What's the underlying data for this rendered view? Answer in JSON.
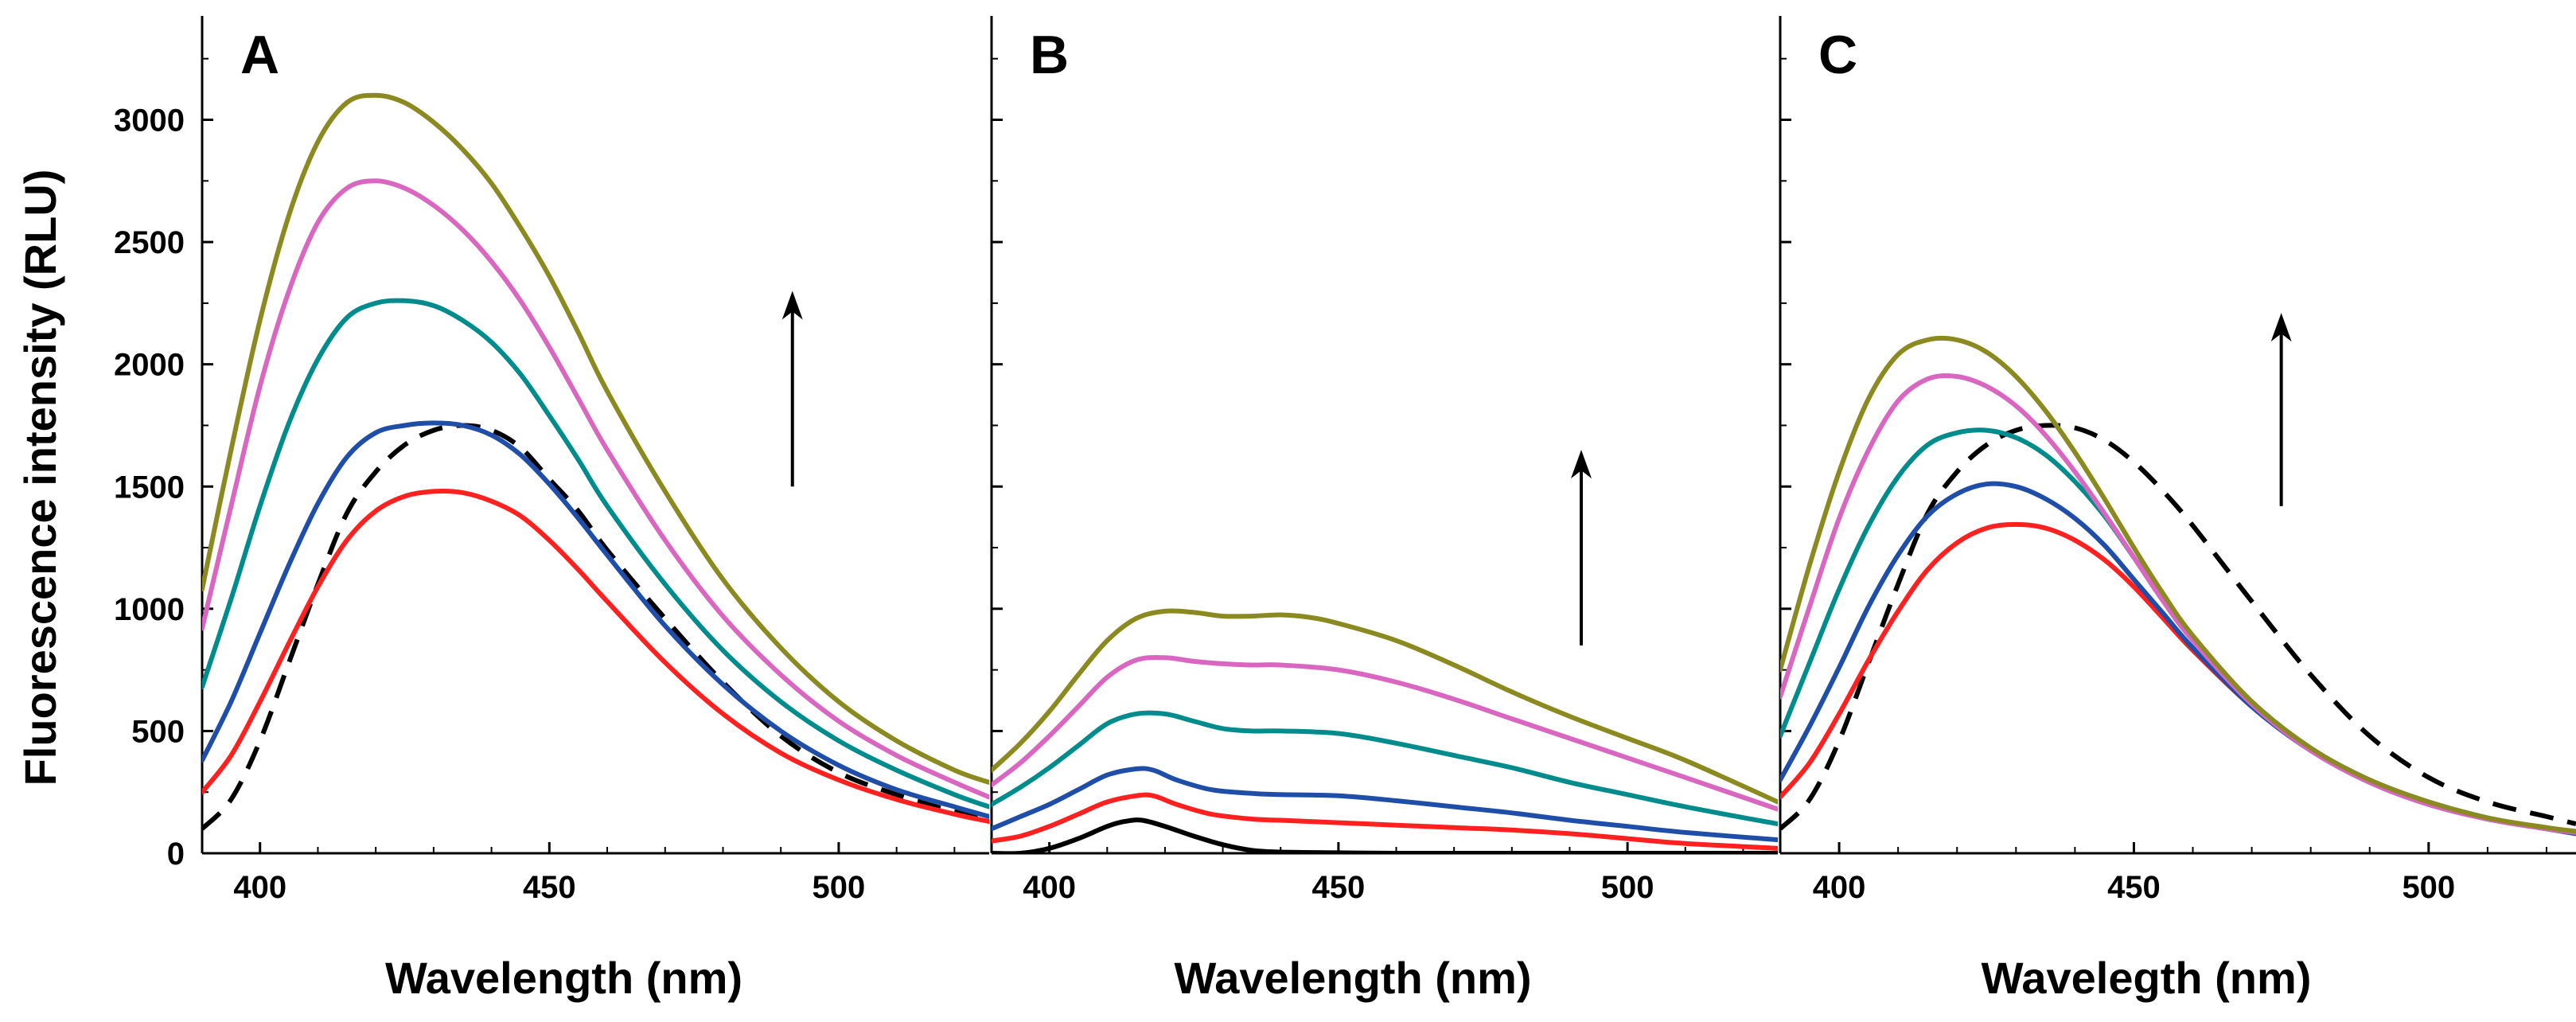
{
  "chart_data": [
    {
      "panel": "A",
      "type": "line",
      "xlabel": "Wavelength (nm)",
      "ylabel": "Fluorescence intensity (RLU)",
      "xlim": [
        390,
        526
      ],
      "ylim": [
        0,
        3350
      ],
      "x_ticks": [
        400,
        450,
        500
      ],
      "y_ticks": [
        0,
        500,
        1000,
        1500,
        2000,
        2500,
        3000
      ],
      "x_tick_labels": [
        "400",
        "450",
        "500"
      ],
      "y_tick_labels": [
        "0",
        "500",
        "1000",
        "1500",
        "2000",
        "2500",
        "3000"
      ],
      "arrow": {
        "x": 492,
        "y_from": 1500,
        "y_to": 2300,
        "direction": "up"
      },
      "series": [
        {
          "name": "dashed",
          "color": "#000000",
          "dashed": true,
          "x": [
            390,
            395,
            400,
            405,
            410,
            415,
            420,
            425,
            430,
            435,
            440,
            445,
            450,
            455,
            460,
            470,
            480,
            490,
            500,
            510,
            520,
            526
          ],
          "y": [
            100,
            220,
            460,
            780,
            1100,
            1390,
            1560,
            1670,
            1730,
            1750,
            1730,
            1660,
            1530,
            1400,
            1240,
            960,
            700,
            480,
            330,
            240,
            170,
            140
          ]
        },
        {
          "name": "red",
          "color": "#ff2020",
          "x": [
            390,
            395,
            400,
            405,
            410,
            415,
            420,
            425,
            430,
            435,
            440,
            445,
            450,
            455,
            460,
            470,
            480,
            490,
            500,
            510,
            520,
            526
          ],
          "y": [
            250,
            400,
            620,
            860,
            1090,
            1280,
            1400,
            1460,
            1480,
            1475,
            1440,
            1380,
            1280,
            1160,
            1030,
            780,
            570,
            410,
            300,
            220,
            160,
            130
          ]
        },
        {
          "name": "blue",
          "color": "#1f4ea8",
          "x": [
            390,
            395,
            400,
            405,
            410,
            415,
            420,
            425,
            430,
            435,
            440,
            445,
            450,
            455,
            460,
            470,
            480,
            490,
            500,
            510,
            520,
            526
          ],
          "y": [
            380,
            620,
            900,
            1180,
            1430,
            1620,
            1720,
            1750,
            1760,
            1750,
            1710,
            1630,
            1510,
            1370,
            1220,
            930,
            690,
            500,
            360,
            260,
            190,
            150
          ]
        },
        {
          "name": "teal",
          "color": "#008c8c",
          "x": [
            390,
            395,
            400,
            405,
            410,
            415,
            420,
            425,
            430,
            435,
            440,
            445,
            450,
            455,
            460,
            470,
            480,
            490,
            500,
            510,
            520,
            526
          ],
          "y": [
            680,
            1040,
            1420,
            1760,
            2020,
            2190,
            2250,
            2260,
            2240,
            2180,
            2090,
            1960,
            1790,
            1610,
            1420,
            1100,
            830,
            620,
            460,
            340,
            240,
            190
          ]
        },
        {
          "name": "pink",
          "color": "#d966c0",
          "x": [
            390,
            395,
            400,
            405,
            410,
            415,
            420,
            425,
            430,
            435,
            440,
            445,
            450,
            455,
            460,
            470,
            480,
            490,
            500,
            510,
            520,
            526
          ],
          "y": [
            920,
            1420,
            1910,
            2300,
            2580,
            2720,
            2750,
            2720,
            2650,
            2550,
            2420,
            2260,
            2070,
            1860,
            1650,
            1280,
            970,
            730,
            540,
            400,
            290,
            230
          ]
        },
        {
          "name": "olive",
          "color": "#8a8a20",
          "x": [
            390,
            395,
            400,
            405,
            410,
            415,
            420,
            425,
            430,
            435,
            440,
            445,
            450,
            455,
            460,
            470,
            480,
            490,
            500,
            510,
            520,
            526
          ],
          "y": [
            1080,
            1650,
            2180,
            2610,
            2910,
            3070,
            3100,
            3070,
            2990,
            2880,
            2740,
            2560,
            2360,
            2130,
            1890,
            1480,
            1120,
            840,
            620,
            460,
            340,
            290
          ]
        }
      ]
    },
    {
      "panel": "B",
      "type": "line",
      "xlabel": "Wavelength (nm)",
      "ylabel": "",
      "xlim": [
        390,
        526
      ],
      "ylim": [
        0,
        3350
      ],
      "x_ticks": [
        400,
        450,
        500
      ],
      "y_ticks": [
        0,
        500,
        1000,
        1500,
        2000,
        2500,
        3000
      ],
      "x_tick_labels": [
        "400",
        "450",
        "500"
      ],
      "arrow": {
        "x": 492,
        "y_from": 850,
        "y_to": 1650,
        "direction": "up"
      },
      "series": [
        {
          "name": "black",
          "color": "#000000",
          "x": [
            390,
            395,
            400,
            405,
            410,
            413,
            416,
            420,
            425,
            430,
            435,
            440,
            450,
            460,
            480,
            500,
            526
          ],
          "y": [
            0,
            0,
            20,
            60,
            110,
            130,
            135,
            110,
            70,
            35,
            12,
            5,
            2,
            0,
            0,
            0,
            0
          ]
        },
        {
          "name": "red",
          "color": "#ff2020",
          "x": [
            390,
            395,
            400,
            405,
            410,
            415,
            418,
            422,
            428,
            435,
            440,
            450,
            460,
            470,
            480,
            490,
            500,
            510,
            526
          ],
          "y": [
            50,
            70,
            110,
            160,
            210,
            235,
            235,
            200,
            160,
            140,
            135,
            125,
            115,
            105,
            95,
            80,
            60,
            40,
            20
          ]
        },
        {
          "name": "blue",
          "color": "#1f4ea8",
          "x": [
            390,
            395,
            400,
            405,
            410,
            415,
            418,
            422,
            428,
            435,
            440,
            450,
            460,
            470,
            480,
            490,
            500,
            510,
            526
          ],
          "y": [
            100,
            150,
            200,
            260,
            320,
            345,
            340,
            300,
            260,
            245,
            240,
            235,
            215,
            190,
            165,
            135,
            110,
            85,
            55
          ]
        },
        {
          "name": "teal",
          "color": "#008c8c",
          "x": [
            390,
            395,
            400,
            405,
            410,
            415,
            420,
            425,
            430,
            435,
            440,
            450,
            460,
            470,
            480,
            490,
            500,
            510,
            526
          ],
          "y": [
            200,
            270,
            350,
            440,
            530,
            570,
            570,
            540,
            510,
            500,
            500,
            490,
            450,
            400,
            350,
            290,
            240,
            190,
            120
          ]
        },
        {
          "name": "pink",
          "color": "#d966c0",
          "x": [
            390,
            395,
            400,
            405,
            410,
            415,
            420,
            425,
            430,
            435,
            440,
            450,
            460,
            470,
            480,
            490,
            500,
            510,
            526
          ],
          "y": [
            280,
            370,
            480,
            600,
            720,
            790,
            800,
            785,
            775,
            770,
            770,
            750,
            700,
            630,
            550,
            470,
            390,
            310,
            180
          ]
        },
        {
          "name": "olive",
          "color": "#8a8a20",
          "x": [
            390,
            395,
            400,
            405,
            410,
            415,
            420,
            425,
            430,
            435,
            440,
            445,
            450,
            460,
            470,
            480,
            490,
            500,
            510,
            526
          ],
          "y": [
            340,
            450,
            580,
            730,
            870,
            960,
            990,
            985,
            970,
            970,
            975,
            965,
            940,
            870,
            770,
            660,
            560,
            470,
            380,
            210
          ]
        }
      ]
    },
    {
      "panel": "C",
      "type": "line",
      "xlabel": "Waveleg​th (nm)",
      "ylabel": "",
      "xlim": [
        390,
        525
      ],
      "ylim": [
        0,
        3350
      ],
      "x_ticks": [
        400,
        450,
        500
      ],
      "y_ticks": [
        0,
        500,
        1000,
        1500,
        2000,
        2500,
        3000
      ],
      "x_tick_labels": [
        "400",
        "450",
        "500"
      ],
      "arrow": {
        "x": 475,
        "y_from": 1420,
        "y_to": 2210,
        "direction": "up"
      },
      "series": [
        {
          "name": "dashed",
          "color": "#000000",
          "dashed": true,
          "x": [
            390,
            395,
            400,
            405,
            410,
            415,
            420,
            425,
            430,
            435,
            440,
            445,
            450,
            455,
            460,
            470,
            480,
            490,
            500,
            510,
            520,
            525
          ],
          "y": [
            100,
            220,
            460,
            780,
            1100,
            1390,
            1560,
            1670,
            1730,
            1750,
            1740,
            1690,
            1600,
            1480,
            1340,
            1030,
            730,
            480,
            310,
            210,
            150,
            120
          ]
        },
        {
          "name": "red",
          "color": "#ff2020",
          "x": [
            390,
            395,
            400,
            405,
            410,
            415,
            420,
            425,
            430,
            435,
            440,
            445,
            450,
            455,
            460,
            470,
            480,
            490,
            500,
            510,
            520,
            525
          ],
          "y": [
            230,
            370,
            570,
            790,
            990,
            1160,
            1270,
            1330,
            1345,
            1330,
            1280,
            1200,
            1090,
            960,
            830,
            600,
            420,
            290,
            200,
            140,
            100,
            80
          ]
        },
        {
          "name": "blue",
          "color": "#1f4ea8",
          "x": [
            390,
            395,
            400,
            405,
            410,
            415,
            420,
            425,
            430,
            435,
            440,
            445,
            450,
            455,
            460,
            470,
            480,
            490,
            500,
            510,
            520,
            525
          ],
          "y": [
            300,
            520,
            760,
            1010,
            1220,
            1380,
            1470,
            1510,
            1500,
            1450,
            1370,
            1260,
            1120,
            980,
            840,
            600,
            420,
            290,
            200,
            140,
            100,
            80
          ]
        },
        {
          "name": "teal",
          "color": "#008c8c",
          "x": [
            390,
            395,
            400,
            405,
            410,
            415,
            420,
            425,
            430,
            435,
            440,
            445,
            450,
            455,
            460,
            470,
            480,
            490,
            500,
            510,
            520,
            525
          ],
          "y": [
            480,
            780,
            1080,
            1340,
            1540,
            1670,
            1720,
            1730,
            1700,
            1630,
            1520,
            1380,
            1210,
            1040,
            880,
            620,
            430,
            300,
            210,
            145,
            100,
            85
          ]
        },
        {
          "name": "pink",
          "color": "#d966c0",
          "x": [
            390,
            395,
            400,
            405,
            410,
            415,
            420,
            425,
            430,
            435,
            440,
            445,
            450,
            455,
            460,
            470,
            480,
            490,
            500,
            510,
            520,
            525
          ],
          "y": [
            640,
            1010,
            1370,
            1650,
            1850,
            1940,
            1950,
            1910,
            1830,
            1710,
            1560,
            1390,
            1210,
            1030,
            870,
            610,
            420,
            290,
            200,
            140,
            100,
            85
          ]
        },
        {
          "name": "olive",
          "color": "#8a8a20",
          "x": [
            390,
            395,
            400,
            405,
            410,
            415,
            420,
            425,
            430,
            435,
            440,
            445,
            450,
            455,
            460,
            470,
            480,
            490,
            500,
            510,
            520,
            525
          ],
          "y": [
            750,
            1180,
            1560,
            1860,
            2040,
            2100,
            2100,
            2050,
            1950,
            1810,
            1640,
            1450,
            1250,
            1060,
            890,
            620,
            430,
            300,
            210,
            145,
            105,
            90
          ]
        }
      ]
    }
  ]
}
